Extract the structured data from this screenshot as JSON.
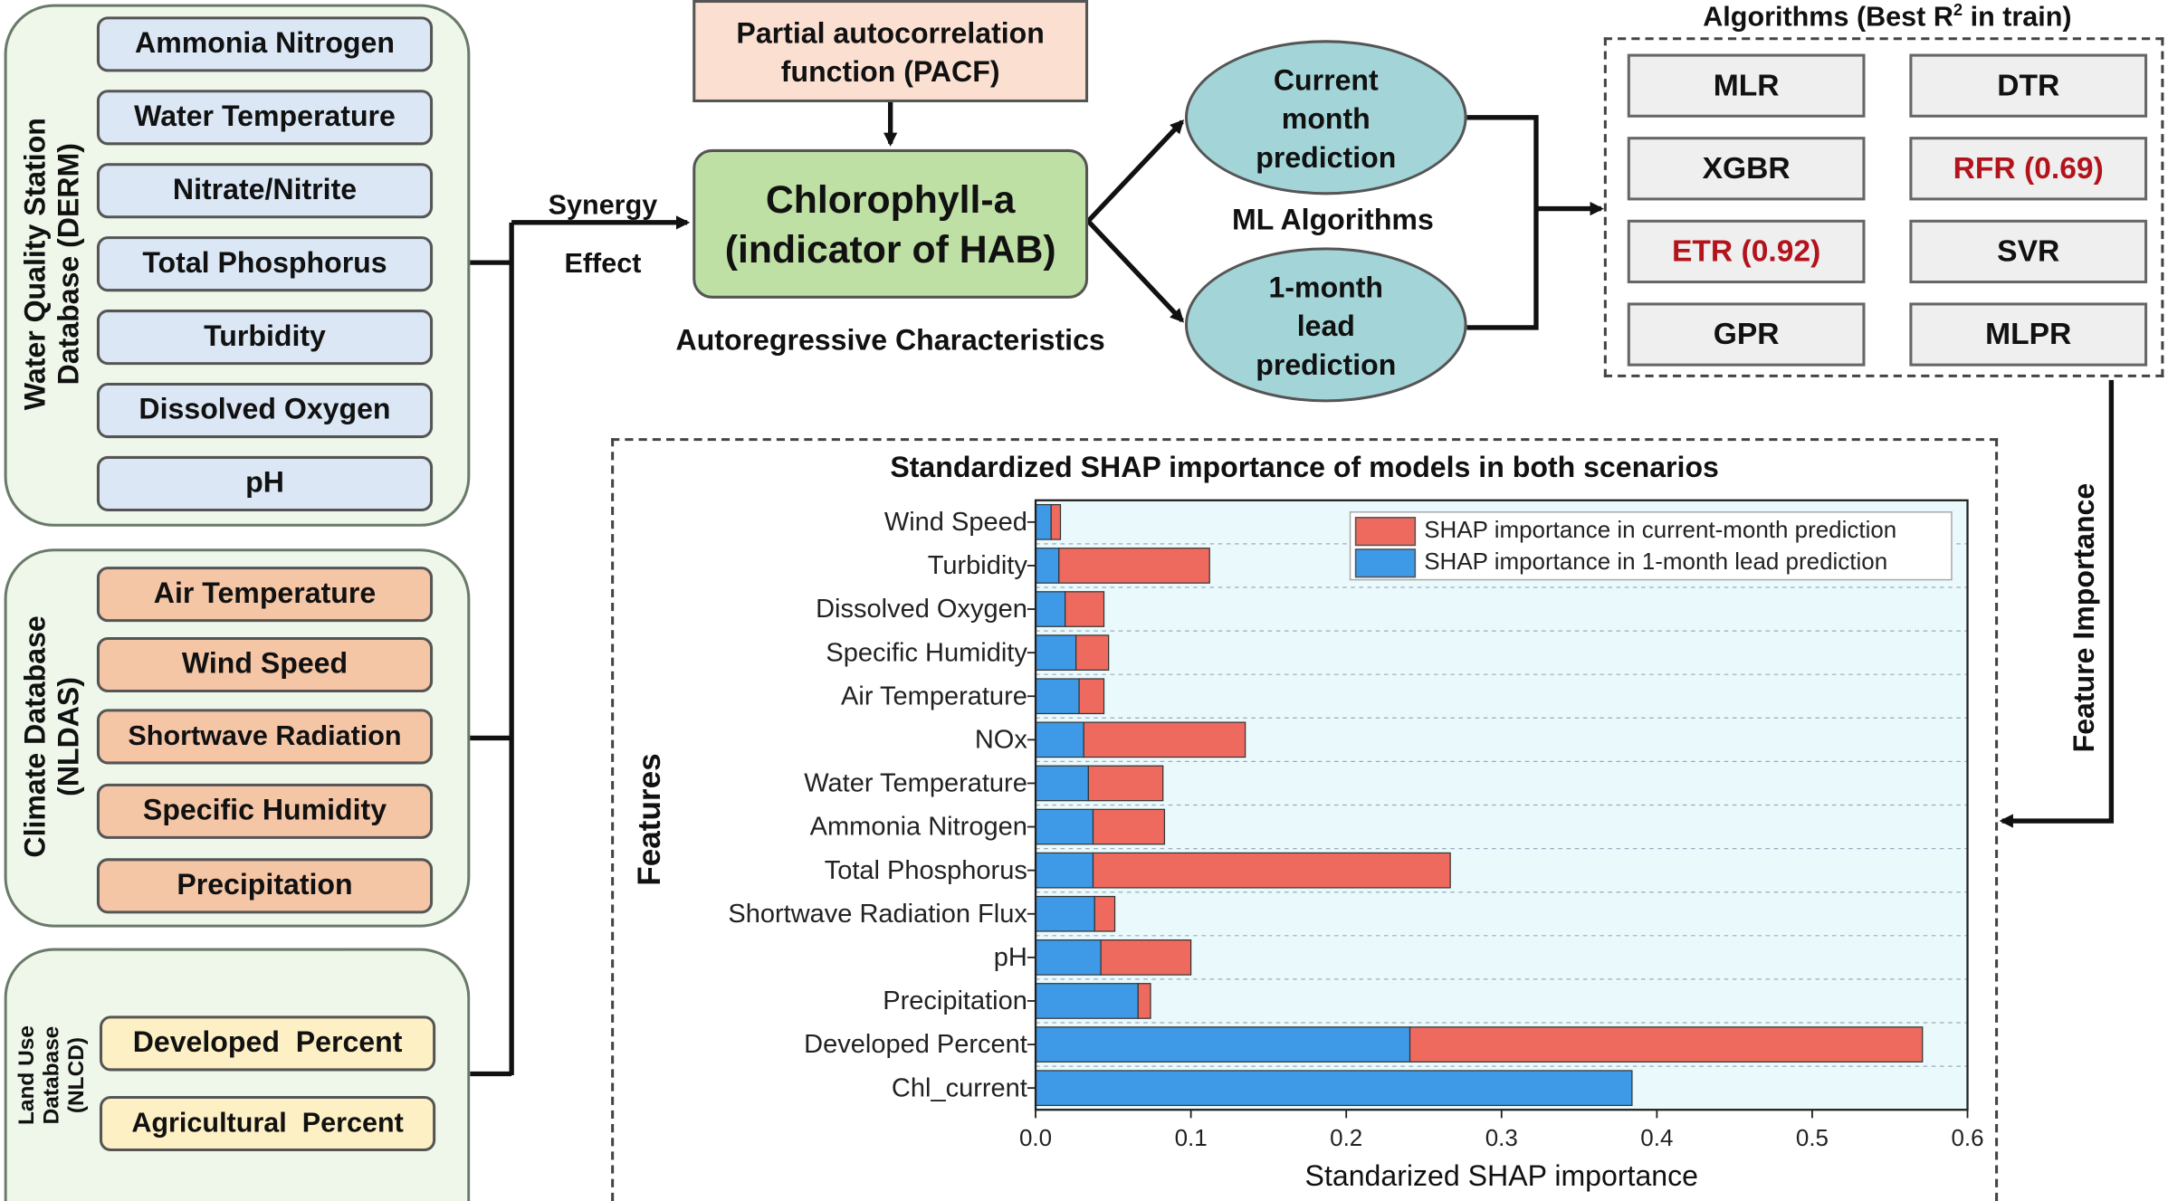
{
  "databases": {
    "water_quality": {
      "title_lines": [
        "Water Quality Station",
        "Database (DERM)"
      ],
      "items": [
        "Ammonia Nitrogen",
        "Water Temperature",
        "Nitrate/Nitrite",
        "Total Phosphorus",
        "Turbidity",
        "Dissolved Oxygen",
        "pH"
      ]
    },
    "climate": {
      "title_lines": [
        "Climate Database",
        "(NLDAS)"
      ],
      "items": [
        "Air Temperature",
        "Wind Speed",
        "Shortwave Radiation",
        "Specific Humidity",
        "Precipitation"
      ]
    },
    "land_use": {
      "title_lines": [
        "Land Use",
        "Database",
        "(NLCD)"
      ],
      "items": [
        "Developed  Percent",
        "Agricultural  Percent"
      ]
    }
  },
  "synergy": {
    "line1": "Synergy",
    "line2": "Effect"
  },
  "pacf": {
    "line1": "Partial autocorrelation",
    "line2": "function (PACF)"
  },
  "target": {
    "line1": "Chlorophyll-a",
    "line2": "(indicator of HAB)"
  },
  "autoregressive_label": "Autoregressive Characteristics",
  "scenarios": {
    "current": [
      "Current",
      "month",
      "prediction"
    ],
    "lead": [
      "1-month",
      "lead",
      "prediction"
    ]
  },
  "ml_label": "ML Algorithms",
  "algorithms": {
    "title_prefix": "Algorithms (Best R",
    "title_sup": "2",
    "title_suffix": " in train)",
    "items": [
      "MLR",
      "DTR",
      "XGBR",
      "RFR (0.69)",
      "ETR (0.92)",
      "SVR",
      "GPR",
      "MLPR"
    ],
    "highlighted": [
      "RFR (0.69)",
      "ETR (0.92)"
    ]
  },
  "feature_importance_label": "Feature Importance",
  "colors": {
    "current_bar": "#ee6a5e",
    "lead_bar": "#3e9ae6",
    "plot_bg": "#eafafc",
    "highlight_text": "#b3141c"
  },
  "chart_data": {
    "type": "bar",
    "orientation": "horizontal",
    "stacked": true,
    "title": "Standardized SHAP importance of models in both scenarios",
    "xlabel": "Standarized SHAP importance",
    "ylabel": "Features",
    "xlim": [
      0.0,
      0.6
    ],
    "xticks": [
      "0.0",
      "0.1",
      "0.2",
      "0.3",
      "0.4",
      "0.5",
      "0.6"
    ],
    "legend_position": "top-right",
    "grid": "horizontal dashed",
    "categories": [
      "Wind Speed",
      "Turbidity",
      "Dissolved Oxygen",
      "Specific Humidity",
      "Air Temperature",
      "NOx",
      "Water Temperature",
      "Ammonia Nitrogen",
      "Total Phosphorus",
      "Shortwave Radiation Flux",
      "pH",
      "Precipitation",
      "Developed Percent",
      "Chl_current"
    ],
    "series": [
      {
        "name": "SHAP importance in 1-month lead prediction",
        "values": [
          0.01,
          0.015,
          0.019,
          0.026,
          0.028,
          0.031,
          0.034,
          0.037,
          0.037,
          0.038,
          0.042,
          0.066,
          0.241,
          0.384
        ]
      },
      {
        "name": "SHAP importance in current-month prediction",
        "values": [
          0.006,
          0.097,
          0.025,
          0.021,
          0.016,
          0.104,
          0.048,
          0.046,
          0.23,
          0.013,
          0.058,
          0.008,
          0.33,
          0.0
        ]
      }
    ]
  }
}
